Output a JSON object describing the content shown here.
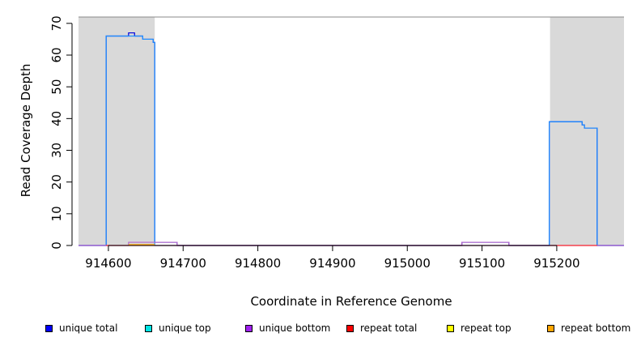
{
  "chart_data": {
    "type": "line",
    "title": "",
    "xlabel": "Coordinate in Reference Genome",
    "ylabel": "Read Coverage Depth",
    "xlim": [
      914560,
      915290
    ],
    "ylim": [
      0,
      72
    ],
    "x_ticks": [
      914600,
      914700,
      914800,
      914900,
      915000,
      915100,
      915200
    ],
    "x_tick_labels": [
      "914600",
      "914700",
      "914800",
      "914900",
      "915000",
      "915100",
      "915200"
    ],
    "y_ticks": [
      0,
      10,
      20,
      30,
      40,
      50,
      60,
      70
    ],
    "y_tick_labels": [
      "0",
      "10",
      "20",
      "30",
      "40",
      "50",
      "60",
      "70"
    ],
    "shaded_regions": [
      {
        "x0": 914560,
        "x1": 914662,
        "color": "#d9d9d9"
      },
      {
        "x0": 915191,
        "x1": 915290,
        "color": "#d9d9d9"
      }
    ],
    "series": [
      {
        "name": "unique total",
        "color": "#0000dd",
        "points": [
          [
            914560,
            0
          ],
          [
            914597,
            0
          ],
          [
            914597,
            66
          ],
          [
            914627,
            66
          ],
          [
            914627,
            67
          ],
          [
            914635,
            67
          ],
          [
            914635,
            66
          ],
          [
            914646,
            66
          ],
          [
            914646,
            65
          ],
          [
            914660,
            65
          ],
          [
            914660,
            64
          ],
          [
            914662,
            64
          ],
          [
            914662,
            1
          ],
          [
            914692,
            1
          ],
          [
            914692,
            0
          ],
          [
            915073,
            0
          ],
          [
            915073,
            1
          ],
          [
            915136,
            1
          ],
          [
            915136,
            0
          ],
          [
            915190,
            0
          ],
          [
            915190,
            39
          ],
          [
            915234,
            39
          ],
          [
            915234,
            38
          ],
          [
            915237,
            38
          ],
          [
            915237,
            37
          ],
          [
            915254,
            37
          ],
          [
            915254,
            0
          ],
          [
            915290,
            0
          ]
        ]
      },
      {
        "name": "unique top",
        "color": "#1e90ff",
        "points": [
          [
            914560,
            0
          ],
          [
            914597,
            0
          ],
          [
            914597,
            66
          ],
          [
            914627,
            66
          ],
          [
            914627,
            66
          ],
          [
            914646,
            66
          ],
          [
            914646,
            65
          ],
          [
            914660,
            65
          ],
          [
            914660,
            64
          ],
          [
            914662,
            64
          ],
          [
            914662,
            0
          ],
          [
            915190,
            0
          ],
          [
            915190,
            39
          ],
          [
            915234,
            39
          ],
          [
            915234,
            38
          ],
          [
            915237,
            38
          ],
          [
            915237,
            37
          ],
          [
            915254,
            37
          ],
          [
            915254,
            0
          ],
          [
            915290,
            0
          ]
        ]
      },
      {
        "name": "unique bottom",
        "color": "#b266c8",
        "points": [
          [
            914560,
            0
          ],
          [
            914627,
            0
          ],
          [
            914627,
            1
          ],
          [
            914662,
            1
          ],
          [
            914662,
            1
          ],
          [
            914692,
            1
          ],
          [
            914692,
            0
          ],
          [
            915073,
            0
          ],
          [
            915073,
            1
          ],
          [
            915136,
            1
          ],
          [
            915136,
            0
          ],
          [
            915290,
            0
          ]
        ]
      },
      {
        "name": "repeat total",
        "color": "#ff3333",
        "points": [
          [
            914597,
            0
          ],
          [
            914662,
            0
          ],
          [
            915190,
            0
          ],
          [
            915254,
            0
          ]
        ]
      },
      {
        "name": "repeat top",
        "color": "#ffff00",
        "points": []
      },
      {
        "name": "repeat bottom",
        "color": "#ffa500",
        "points": [
          [
            914627,
            0.3
          ],
          [
            914662,
            0.3
          ]
        ]
      }
    ]
  },
  "legend": {
    "items": [
      {
        "label": "unique total",
        "color": "#0000ff"
      },
      {
        "label": "unique top",
        "color": "#00e5e5"
      },
      {
        "label": "unique bottom",
        "color": "#a020f0"
      },
      {
        "label": "repeat total",
        "color": "#ff0000"
      },
      {
        "label": "repeat top",
        "color": "#ffff00"
      },
      {
        "label": "repeat bottom",
        "color": "#ffa500"
      }
    ]
  }
}
